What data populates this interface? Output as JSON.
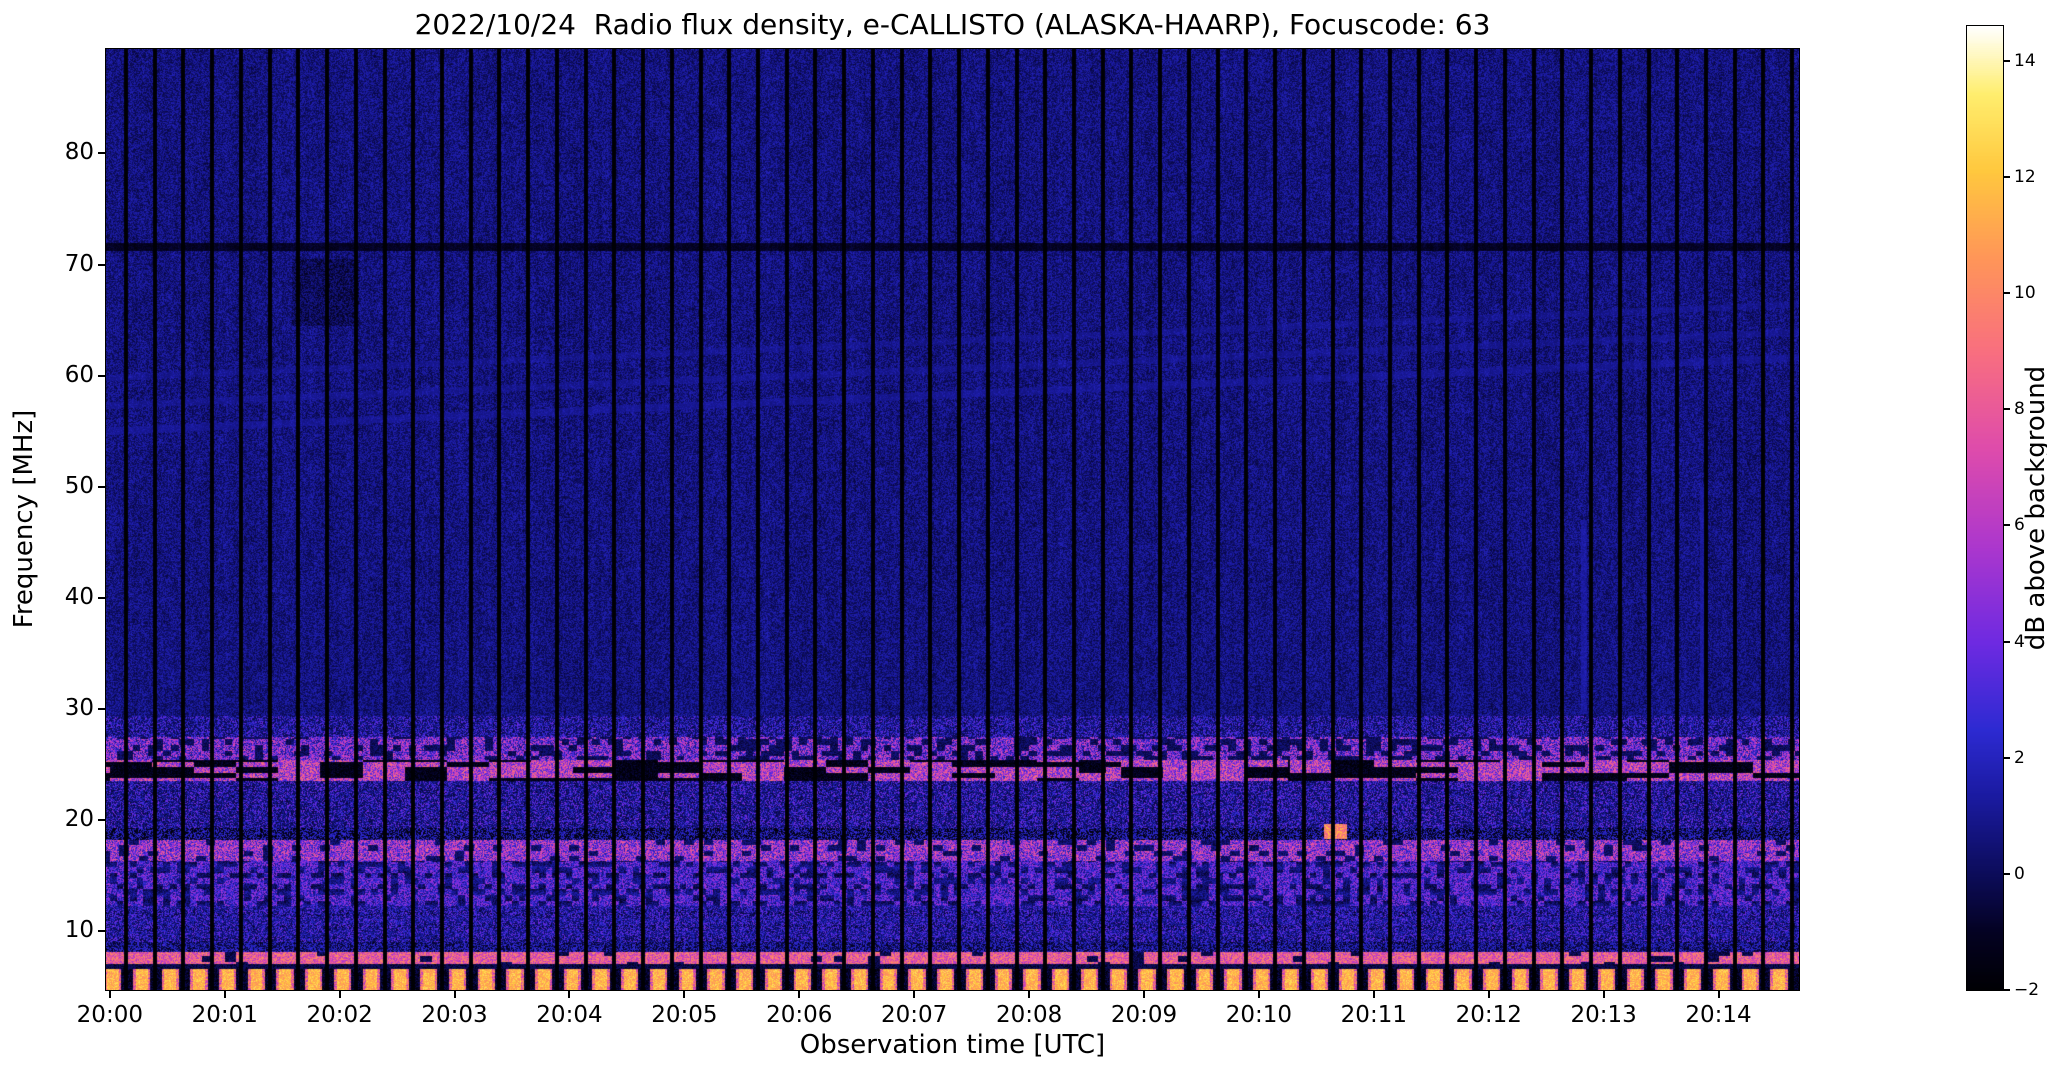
{
  "chart_data": {
    "type": "heatmap",
    "title": "2022/10/24  Radio flux density, e-CALLISTO (ALASKA-HAARP), Focuscode: 63",
    "xlabel": "Observation time [UTC]",
    "ylabel": "Frequency [MHz]",
    "x_ticks": [
      {
        "label": "20:00",
        "minute": 0
      },
      {
        "label": "20:01",
        "minute": 1
      },
      {
        "label": "20:02",
        "minute": 2
      },
      {
        "label": "20:03",
        "minute": 3
      },
      {
        "label": "20:04",
        "minute": 4
      },
      {
        "label": "20:05",
        "minute": 5
      },
      {
        "label": "20:06",
        "minute": 6
      },
      {
        "label": "20:07",
        "minute": 7
      },
      {
        "label": "20:08",
        "minute": 8
      },
      {
        "label": "20:09",
        "minute": 9
      },
      {
        "label": "20:10",
        "minute": 10
      },
      {
        "label": "20:11",
        "minute": 11
      },
      {
        "label": "20:12",
        "minute": 12
      },
      {
        "label": "20:13",
        "minute": 13
      },
      {
        "label": "20:14",
        "minute": 14
      }
    ],
    "x_range_s": [
      -2,
      882
    ],
    "y_ticks": [
      {
        "label": "10",
        "f": 10
      },
      {
        "label": "20",
        "f": 20
      },
      {
        "label": "30",
        "f": 30
      },
      {
        "label": "40",
        "f": 40
      },
      {
        "label": "50",
        "f": 50
      },
      {
        "label": "60",
        "f": 60
      },
      {
        "label": "70",
        "f": 70
      },
      {
        "label": "80",
        "f": 80
      }
    ],
    "y_range_mhz": [
      4.7,
      89.4
    ],
    "colorbar": {
      "label": "dB above background",
      "ticks": [
        {
          "label": "−2",
          "v": -2
        },
        {
          "label": "0",
          "v": 0
        },
        {
          "label": "2",
          "v": 2
        },
        {
          "label": "4",
          "v": 4
        },
        {
          "label": "6",
          "v": 6
        },
        {
          "label": "8",
          "v": 8
        },
        {
          "label": "10",
          "v": 10
        },
        {
          "label": "12",
          "v": 12
        },
        {
          "label": "14",
          "v": 14
        }
      ],
      "range": [
        -2,
        14.6
      ]
    },
    "colormap_stops": [
      [
        0.0,
        [
          0,
          0,
          4
        ]
      ],
      [
        0.06,
        [
          4,
          2,
          35
        ]
      ],
      [
        0.12,
        [
          12,
          12,
          90
        ]
      ],
      [
        0.2,
        [
          26,
          26,
          160
        ]
      ],
      [
        0.27,
        [
          45,
          42,
          210
        ]
      ],
      [
        0.36,
        [
          110,
          42,
          225
        ]
      ],
      [
        0.46,
        [
          172,
          55,
          205
        ]
      ],
      [
        0.56,
        [
          222,
          75,
          172
        ]
      ],
      [
        0.66,
        [
          248,
          110,
          128
        ]
      ],
      [
        0.76,
        [
          255,
          150,
          88
        ]
      ],
      [
        0.85,
        [
          255,
          200,
          62
        ]
      ],
      [
        0.93,
        [
          255,
          238,
          110
        ]
      ],
      [
        1.0,
        [
          255,
          255,
          255
        ]
      ]
    ],
    "gaps": {
      "period_s": 15,
      "start_s": 7.4,
      "width_s": 2.1
    },
    "bands": [
      {
        "f": [
          4.7,
          6.6
        ],
        "base": [
          -1.0,
          1.2
        ],
        "pat": "b",
        "prob": 0.62,
        "amp": [
          8.5,
          14.6
        ]
      },
      {
        "f": [
          6.6,
          7.0
        ],
        "base": [
          -0.9,
          0.5
        ],
        "pat": "u",
        "prob": 0.0,
        "amp": [
          0,
          0
        ]
      },
      {
        "f": [
          7.0,
          8.1
        ],
        "base": [
          -0.3,
          1.4
        ],
        "pat": "c",
        "cell": 6,
        "prob": 0.42,
        "amp": [
          8,
          13.4
        ]
      },
      {
        "f": [
          8.1,
          9.0
        ],
        "base": [
          -0.6,
          1.0
        ],
        "pat": "u",
        "prob": 0.015,
        "amp": [
          2,
          4
        ]
      },
      {
        "f": [
          9.0,
          12.3
        ],
        "base": [
          0.2,
          2.1
        ],
        "pat": "u",
        "prob": 0.05,
        "amp": [
          2.5,
          6
        ],
        "stripe": 0.3
      },
      {
        "f": [
          12.3,
          16.3
        ],
        "base": [
          0.4,
          2.6
        ],
        "pat": "c",
        "cell": 3.5,
        "prob": 0.14,
        "amp": [
          3,
          8.5
        ],
        "stripe": 0.5
      },
      {
        "f": [
          16.3,
          18.2
        ],
        "base": [
          0.2,
          2.0
        ],
        "pat": "c",
        "cell": 5,
        "prob": 0.32,
        "amp": [
          5,
          12.5
        ]
      },
      {
        "f": [
          18.2,
          19.3
        ],
        "base": [
          -1.3,
          0.5
        ],
        "pat": "u",
        "prob": 0.01,
        "amp": [
          2,
          4
        ]
      },
      {
        "f": [
          19.3,
          23.5
        ],
        "base": [
          0.1,
          1.8
        ],
        "pat": "u",
        "prob": 0.035,
        "amp": [
          2.5,
          6.5
        ],
        "win": [
          [
            430,
            680,
            0.06
          ]
        ]
      },
      {
        "f": [
          23.5,
          25.4
        ],
        "base": [
          -1.4,
          0.4
        ],
        "pat": "c",
        "cell": 22,
        "prob": 0.055,
        "amp": [
          6,
          13.2
        ],
        "win": [
          [
            520,
            615,
            0.26
          ],
          [
            790,
            884,
            0.12
          ]
        ]
      },
      {
        "f": [
          25.4,
          27.5
        ],
        "base": [
          0.0,
          1.7
        ],
        "pat": "c",
        "cell": 4,
        "prob": 0.1,
        "amp": [
          4,
          11.5
        ],
        "win": [
          [
            -2,
            280,
            0.22
          ],
          [
            750,
            884,
            0.24
          ]
        ]
      },
      {
        "f": [
          27.5,
          29.4
        ],
        "base": [
          0.1,
          1.5
        ],
        "pat": "u",
        "prob": 0.02,
        "amp": [
          2.5,
          5.5
        ]
      },
      {
        "f": [
          29.4,
          89.4
        ],
        "base": [
          0.35,
          1.3
        ],
        "pat": "u",
        "prob": 0.003,
        "amp": [
          1.6,
          2.6
        ],
        "texture": true
      }
    ],
    "overlays": [
      {
        "type": "diag",
        "f0": 55.0,
        "slope": 0.0075,
        "hw": 0.33,
        "v": [
          1.1,
          1.9
        ]
      },
      {
        "type": "diag",
        "f0": 57.3,
        "slope": 0.0075,
        "hw": 0.3,
        "v": [
          1.0,
          1.7
        ]
      },
      {
        "type": "diag",
        "f0": 59.8,
        "slope": 0.0075,
        "hw": 0.28,
        "v": [
          0.95,
          1.6
        ]
      },
      {
        "type": "hline",
        "f": [
          71.2,
          71.9
        ],
        "v": [
          -0.7,
          0.2
        ]
      },
      {
        "type": "patch",
        "t": [
          95,
          130
        ],
        "f": [
          64.5,
          70.5
        ],
        "dv": -0.7
      },
      {
        "type": "vstreak",
        "t": [
          768,
          771.5
        ],
        "f": [
          29.5,
          47
        ],
        "v": [
          1.3,
          3.2
        ]
      },
      {
        "type": "vstreak",
        "t": [
          830.5,
          833.5
        ],
        "f": [
          29.5,
          50
        ],
        "v": [
          1.1,
          2.8
        ]
      },
      {
        "type": "vstreak",
        "t": [
          634,
          646
        ],
        "f": [
          18.3,
          19.6
        ],
        "v": [
          10,
          14.6
        ]
      }
    ]
  }
}
